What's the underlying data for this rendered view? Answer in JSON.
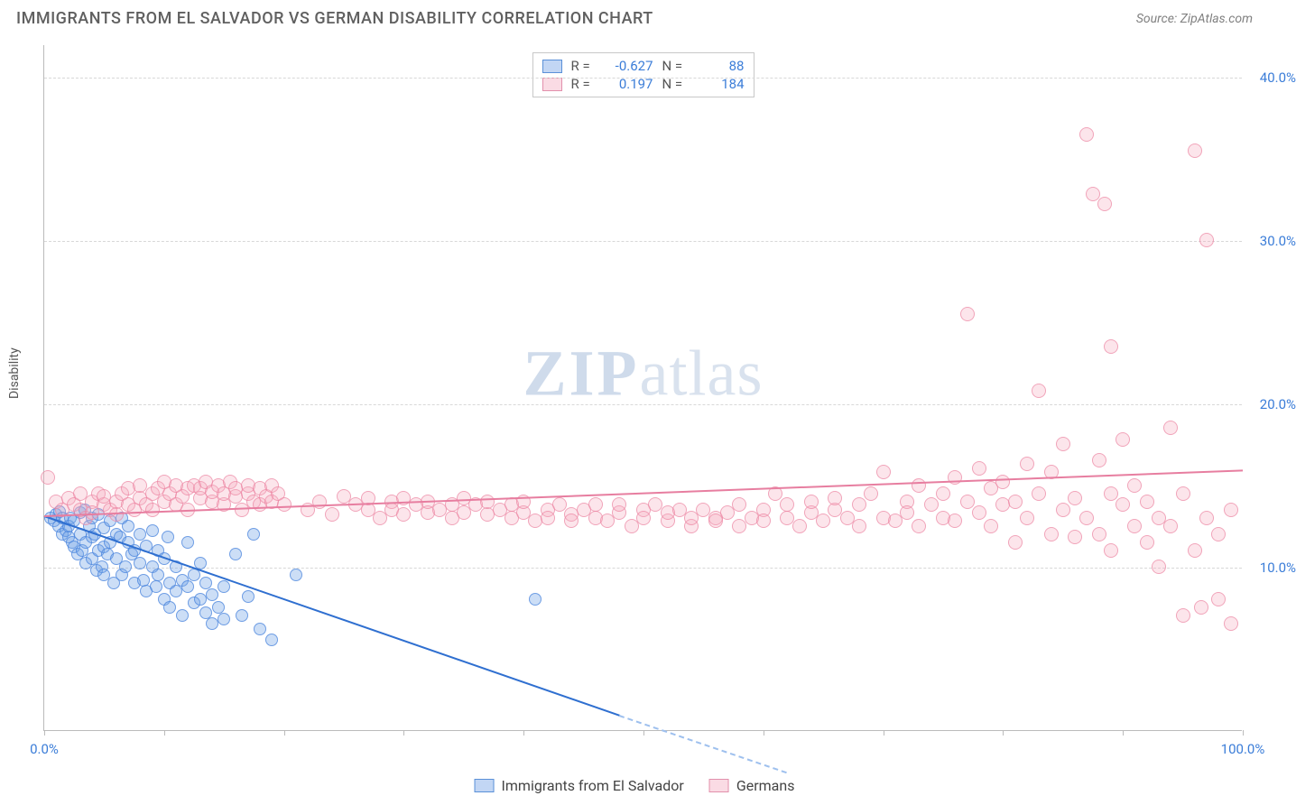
{
  "title": "IMMIGRANTS FROM EL SALVADOR VS GERMAN DISABILITY CORRELATION CHART",
  "source": "Source: ZipAtlas.com",
  "ylabel": "Disability",
  "watermark": {
    "zip": "ZIP",
    "rest": "atlas"
  },
  "chart": {
    "type": "scatter",
    "xlim": [
      0,
      100
    ],
    "ylim": [
      0,
      42
    ],
    "background_color": "#ffffff",
    "grid_color": "#d8d8d8",
    "yticks": [
      10,
      20,
      30,
      40
    ],
    "ytick_labels": [
      "10.0%",
      "20.0%",
      "30.0%",
      "40.0%"
    ],
    "xtick_positions": [
      0,
      10,
      20,
      30,
      40,
      50,
      60,
      70,
      80,
      90,
      100
    ],
    "xtick_labels": {
      "0": "0.0%",
      "100": "100.0%"
    },
    "series": [
      {
        "name": "Immigrants from El Salvador",
        "id": "elsalvador",
        "color_fill": "rgba(110,160,230,0.35)",
        "color_stroke": "#468adc",
        "marker_size": 14,
        "R": "-0.627",
        "N": "88",
        "trend": {
          "x1": 0,
          "y1": 13.2,
          "x2": 48,
          "y2": 1.0,
          "dash_after_x": 48,
          "dash_end_x": 62,
          "dash_end_y": -2.5
        },
        "points": [
          [
            0.5,
            13.0
          ],
          [
            0.8,
            12.8
          ],
          [
            1.0,
            13.2
          ],
          [
            1.2,
            12.5
          ],
          [
            1.3,
            13.4
          ],
          [
            1.5,
            12.0
          ],
          [
            1.5,
            13.0
          ],
          [
            1.8,
            12.2
          ],
          [
            2.0,
            11.8
          ],
          [
            2.0,
            12.5
          ],
          [
            2.2,
            13.0
          ],
          [
            2.3,
            11.5
          ],
          [
            2.5,
            12.8
          ],
          [
            2.5,
            11.2
          ],
          [
            2.8,
            10.8
          ],
          [
            3.0,
            12.0
          ],
          [
            3.0,
            13.3
          ],
          [
            3.2,
            11.0
          ],
          [
            3.4,
            13.5
          ],
          [
            3.5,
            11.5
          ],
          [
            3.5,
            10.2
          ],
          [
            3.8,
            12.5
          ],
          [
            4.0,
            11.8
          ],
          [
            4.0,
            10.5
          ],
          [
            4.0,
            13.0
          ],
          [
            4.2,
            12.0
          ],
          [
            4.4,
            9.8
          ],
          [
            4.5,
            11.0
          ],
          [
            4.5,
            13.2
          ],
          [
            4.8,
            10.0
          ],
          [
            5.0,
            12.4
          ],
          [
            5.0,
            11.2
          ],
          [
            5.0,
            9.5
          ],
          [
            5.3,
            10.8
          ],
          [
            5.5,
            12.8
          ],
          [
            5.5,
            11.5
          ],
          [
            5.8,
            9.0
          ],
          [
            6.0,
            12.0
          ],
          [
            6.0,
            10.5
          ],
          [
            6.3,
            11.8
          ],
          [
            6.5,
            13.0
          ],
          [
            6.5,
            9.5
          ],
          [
            6.8,
            10.0
          ],
          [
            7.0,
            11.5
          ],
          [
            7.0,
            12.5
          ],
          [
            7.3,
            10.8
          ],
          [
            7.5,
            9.0
          ],
          [
            7.5,
            11.0
          ],
          [
            8.0,
            12.0
          ],
          [
            8.0,
            10.2
          ],
          [
            8.3,
            9.2
          ],
          [
            8.5,
            11.3
          ],
          [
            8.5,
            8.5
          ],
          [
            9.0,
            12.2
          ],
          [
            9.0,
            10.0
          ],
          [
            9.3,
            8.8
          ],
          [
            9.5,
            11.0
          ],
          [
            9.5,
            9.5
          ],
          [
            10.0,
            10.5
          ],
          [
            10.0,
            8.0
          ],
          [
            10.3,
            11.8
          ],
          [
            10.5,
            9.0
          ],
          [
            10.5,
            7.5
          ],
          [
            11.0,
            10.0
          ],
          [
            11.0,
            8.5
          ],
          [
            11.5,
            9.2
          ],
          [
            11.5,
            7.0
          ],
          [
            12.0,
            11.5
          ],
          [
            12.0,
            8.8
          ],
          [
            12.5,
            7.8
          ],
          [
            12.5,
            9.5
          ],
          [
            13.0,
            8.0
          ],
          [
            13.0,
            10.2
          ],
          [
            13.5,
            7.2
          ],
          [
            13.5,
            9.0
          ],
          [
            14.0,
            8.3
          ],
          [
            14.0,
            6.5
          ],
          [
            14.5,
            7.5
          ],
          [
            15.0,
            8.8
          ],
          [
            15.0,
            6.8
          ],
          [
            16.0,
            10.8
          ],
          [
            16.5,
            7.0
          ],
          [
            17.0,
            8.2
          ],
          [
            17.5,
            12.0
          ],
          [
            18.0,
            6.2
          ],
          [
            19.0,
            5.5
          ],
          [
            21.0,
            9.5
          ],
          [
            41.0,
            8.0
          ]
        ]
      },
      {
        "name": "Germans",
        "id": "germans",
        "color_fill": "rgba(245,170,190,0.30)",
        "color_stroke": "#eb82a0",
        "marker_size": 16,
        "R": "0.197",
        "N": "184",
        "trend": {
          "x1": 0,
          "y1": 13.2,
          "x2": 100,
          "y2": 16.0
        },
        "points": [
          [
            0.3,
            15.5
          ],
          [
            1.0,
            14.0
          ],
          [
            1.5,
            13.5
          ],
          [
            2.0,
            14.2
          ],
          [
            2.5,
            13.8
          ],
          [
            3.0,
            13.5
          ],
          [
            3.0,
            14.5
          ],
          [
            3.5,
            13.0
          ],
          [
            4.0,
            14.0
          ],
          [
            4.0,
            13.3
          ],
          [
            4.5,
            14.5
          ],
          [
            5.0,
            13.8
          ],
          [
            5.0,
            14.3
          ],
          [
            5.5,
            13.5
          ],
          [
            6.0,
            14.0
          ],
          [
            6.0,
            13.2
          ],
          [
            6.5,
            14.5
          ],
          [
            7.0,
            13.8
          ],
          [
            7.0,
            14.8
          ],
          [
            7.5,
            13.5
          ],
          [
            8.0,
            14.2
          ],
          [
            8.0,
            15.0
          ],
          [
            8.5,
            13.8
          ],
          [
            9.0,
            14.5
          ],
          [
            9.0,
            13.5
          ],
          [
            9.5,
            14.8
          ],
          [
            10.0,
            14.0
          ],
          [
            10.0,
            15.2
          ],
          [
            10.5,
            14.5
          ],
          [
            11.0,
            13.8
          ],
          [
            11.0,
            15.0
          ],
          [
            11.5,
            14.3
          ],
          [
            12.0,
            14.8
          ],
          [
            12.0,
            13.5
          ],
          [
            12.5,
            15.0
          ],
          [
            13.0,
            14.2
          ],
          [
            13.0,
            14.8
          ],
          [
            13.5,
            15.2
          ],
          [
            14.0,
            14.0
          ],
          [
            14.0,
            14.6
          ],
          [
            14.5,
            15.0
          ],
          [
            15.0,
            13.8
          ],
          [
            15.0,
            14.5
          ],
          [
            15.5,
            15.2
          ],
          [
            16.0,
            14.3
          ],
          [
            16.0,
            14.8
          ],
          [
            16.5,
            13.5
          ],
          [
            17.0,
            14.5
          ],
          [
            17.0,
            15.0
          ],
          [
            17.5,
            14.0
          ],
          [
            18.0,
            14.8
          ],
          [
            18.0,
            13.8
          ],
          [
            18.5,
            14.3
          ],
          [
            19.0,
            15.0
          ],
          [
            19.0,
            14.0
          ],
          [
            19.5,
            14.5
          ],
          [
            20.0,
            13.8
          ],
          [
            22.0,
            13.5
          ],
          [
            23.0,
            14.0
          ],
          [
            24.0,
            13.2
          ],
          [
            25.0,
            14.3
          ],
          [
            26.0,
            13.8
          ],
          [
            27.0,
            13.5
          ],
          [
            27.0,
            14.2
          ],
          [
            28.0,
            13.0
          ],
          [
            29.0,
            14.0
          ],
          [
            29.0,
            13.5
          ],
          [
            30.0,
            14.2
          ],
          [
            30.0,
            13.2
          ],
          [
            31.0,
            13.8
          ],
          [
            32.0,
            13.3
          ],
          [
            32.0,
            14.0
          ],
          [
            33.0,
            13.5
          ],
          [
            34.0,
            13.0
          ],
          [
            34.0,
            13.8
          ],
          [
            35.0,
            14.2
          ],
          [
            35.0,
            13.3
          ],
          [
            36.0,
            13.8
          ],
          [
            37.0,
            13.2
          ],
          [
            37.0,
            14.0
          ],
          [
            38.0,
            13.5
          ],
          [
            39.0,
            13.0
          ],
          [
            39.0,
            13.8
          ],
          [
            40.0,
            13.3
          ],
          [
            40.0,
            14.0
          ],
          [
            41.0,
            12.8
          ],
          [
            42.0,
            13.5
          ],
          [
            42.0,
            13.0
          ],
          [
            43.0,
            13.8
          ],
          [
            44.0,
            13.2
          ],
          [
            44.0,
            12.8
          ],
          [
            45.0,
            13.5
          ],
          [
            46.0,
            13.0
          ],
          [
            46.0,
            13.8
          ],
          [
            47.0,
            12.8
          ],
          [
            48.0,
            13.3
          ],
          [
            48.0,
            13.8
          ],
          [
            49.0,
            12.5
          ],
          [
            50.0,
            13.5
          ],
          [
            50.0,
            13.0
          ],
          [
            51.0,
            13.8
          ],
          [
            52.0,
            12.8
          ],
          [
            52.0,
            13.3
          ],
          [
            53.0,
            13.5
          ],
          [
            54.0,
            12.5
          ],
          [
            54.0,
            13.0
          ],
          [
            55.0,
            13.5
          ],
          [
            56.0,
            13.0
          ],
          [
            56.0,
            12.8
          ],
          [
            57.0,
            13.3
          ],
          [
            58.0,
            13.8
          ],
          [
            58.0,
            12.5
          ],
          [
            59.0,
            13.0
          ],
          [
            60.0,
            13.5
          ],
          [
            60.0,
            12.8
          ],
          [
            61.0,
            14.5
          ],
          [
            62.0,
            13.0
          ],
          [
            62.0,
            13.8
          ],
          [
            63.0,
            12.5
          ],
          [
            64.0,
            13.3
          ],
          [
            64.0,
            14.0
          ],
          [
            65.0,
            12.8
          ],
          [
            66.0,
            13.5
          ],
          [
            66.0,
            14.2
          ],
          [
            67.0,
            13.0
          ],
          [
            68.0,
            12.5
          ],
          [
            68.0,
            13.8
          ],
          [
            69.0,
            14.5
          ],
          [
            70.0,
            13.0
          ],
          [
            70.0,
            15.8
          ],
          [
            71.0,
            12.8
          ],
          [
            72.0,
            14.0
          ],
          [
            72.0,
            13.3
          ],
          [
            73.0,
            15.0
          ],
          [
            73.0,
            12.5
          ],
          [
            74.0,
            13.8
          ],
          [
            75.0,
            14.5
          ],
          [
            75.0,
            13.0
          ],
          [
            76.0,
            15.5
          ],
          [
            76.0,
            12.8
          ],
          [
            77.0,
            14.0
          ],
          [
            77.0,
            25.5
          ],
          [
            78.0,
            13.3
          ],
          [
            78.0,
            16.0
          ],
          [
            79.0,
            14.8
          ],
          [
            79.0,
            12.5
          ],
          [
            80.0,
            13.8
          ],
          [
            80.0,
            15.2
          ],
          [
            81.0,
            11.5
          ],
          [
            81.0,
            14.0
          ],
          [
            82.0,
            16.3
          ],
          [
            82.0,
            13.0
          ],
          [
            83.0,
            20.8
          ],
          [
            83.0,
            14.5
          ],
          [
            84.0,
            12.0
          ],
          [
            84.0,
            15.8
          ],
          [
            85.0,
            13.5
          ],
          [
            85.0,
            17.5
          ],
          [
            86.0,
            11.8
          ],
          [
            86.0,
            14.2
          ],
          [
            87.0,
            36.5
          ],
          [
            87.0,
            13.0
          ],
          [
            87.5,
            32.8
          ],
          [
            88.0,
            12.0
          ],
          [
            88.0,
            16.5
          ],
          [
            88.5,
            32.2
          ],
          [
            89.0,
            14.5
          ],
          [
            89.0,
            11.0
          ],
          [
            89.0,
            23.5
          ],
          [
            90.0,
            13.8
          ],
          [
            90.0,
            17.8
          ],
          [
            91.0,
            12.5
          ],
          [
            91.0,
            15.0
          ],
          [
            92.0,
            11.5
          ],
          [
            92.0,
            14.0
          ],
          [
            93.0,
            13.0
          ],
          [
            93.0,
            10.0
          ],
          [
            94.0,
            18.5
          ],
          [
            94.0,
            12.5
          ],
          [
            95.0,
            7.0
          ],
          [
            95.0,
            14.5
          ],
          [
            96.0,
            11.0
          ],
          [
            96.0,
            35.5
          ],
          [
            96.5,
            7.5
          ],
          [
            97.0,
            13.0
          ],
          [
            97.0,
            30.0
          ],
          [
            98.0,
            12.0
          ],
          [
            98.0,
            8.0
          ],
          [
            99.0,
            6.5
          ],
          [
            99.0,
            13.5
          ]
        ]
      }
    ]
  },
  "stats_box": {
    "rows": [
      {
        "swatch": "blue",
        "R_label": "R =",
        "R": "-0.627",
        "N_label": "N =",
        "N": "88"
      },
      {
        "swatch": "pink",
        "R_label": "R =",
        "R": "0.197",
        "N_label": "N =",
        "N": "184"
      }
    ]
  },
  "bottom_legend": {
    "items": [
      {
        "swatch": "blue",
        "label": "Immigrants from El Salvador"
      },
      {
        "swatch": "pink",
        "label": "Germans"
      }
    ]
  }
}
